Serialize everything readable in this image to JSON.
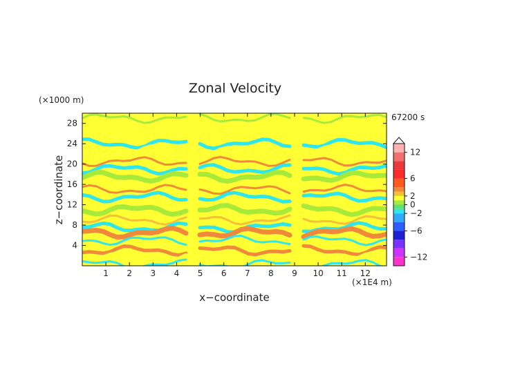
{
  "chart_data": {
    "type": "heatmap",
    "title": "Zonal Velocity",
    "xlabel": "x−coordinate",
    "ylabel": "z−coordinate",
    "x_unit": "(×1E4 m)",
    "y_unit": "(×1000 m)",
    "time_label": "67200 s",
    "xlim": [
      0,
      12.9
    ],
    "ylim": [
      0,
      30
    ],
    "x_ticks": [
      1,
      2,
      3,
      4,
      5,
      6,
      7,
      8,
      9,
      10,
      11,
      12
    ],
    "y_ticks": [
      4,
      8,
      12,
      16,
      20,
      24,
      28
    ],
    "x_tick_labels": [
      "1",
      "2",
      "3",
      "4",
      "5",
      "6",
      "7",
      "8",
      "9",
      "10",
      "11",
      "12"
    ],
    "y_tick_labels": [
      "4",
      "8",
      "12",
      "16",
      "20",
      "24",
      "28"
    ],
    "colorbar": {
      "levels": [
        -14,
        -12,
        -10,
        -8,
        -6,
        -4,
        -2,
        -1,
        0,
        1,
        2,
        3,
        4,
        6,
        8,
        10,
        12,
        14
      ],
      "colors": [
        "#ff33cc",
        "#cc33ff",
        "#7a33ff",
        "#1f1fd6",
        "#2f5cff",
        "#2fa8ff",
        "#2ee6ee",
        "#5fe07a",
        "#a8ea3a",
        "#ffff33",
        "#f5c038",
        "#f08a3a",
        "#ff5a1f",
        "#ff2a2a",
        "#e83a3a",
        "#f07070",
        "#ffb0b0"
      ],
      "tick_values": [
        12,
        6,
        2,
        0,
        -2,
        -6,
        -12
      ],
      "tick_labels": [
        "12",
        "6",
        "2",
        "0",
        "−2",
        "−6",
        "−12"
      ]
    },
    "field": {
      "x_bands": [
        {
          "z": 29.0,
          "color": "#a8ea3a"
        },
        {
          "z": 24.0,
          "color": "#2ee6ee"
        },
        {
          "z": 22.5,
          "color": "#ffff33"
        },
        {
          "z": 20.5,
          "color": "#f08a3a"
        },
        {
          "z": 19.0,
          "color": "#2ee6ee"
        },
        {
          "z": 17.5,
          "color": "#a8ea3a"
        },
        {
          "z": 15.0,
          "color": "#f08a3a"
        },
        {
          "z": 13.5,
          "color": "#2ee6ee"
        },
        {
          "z": 11.0,
          "color": "#a8ea3a"
        },
        {
          "z": 9.0,
          "color": "#f5c038"
        },
        {
          "z": 7.5,
          "color": "#2ee6ee"
        },
        {
          "z": 6.5,
          "color": "#f08a3a"
        },
        {
          "z": 5.0,
          "color": "#2ee6ee"
        },
        {
          "z": 3.0,
          "color": "#f08a3a"
        },
        {
          "z": 1.5,
          "color": "#ffff33"
        },
        {
          "z": 0.3,
          "color": "#2ee6ee"
        }
      ]
    }
  }
}
